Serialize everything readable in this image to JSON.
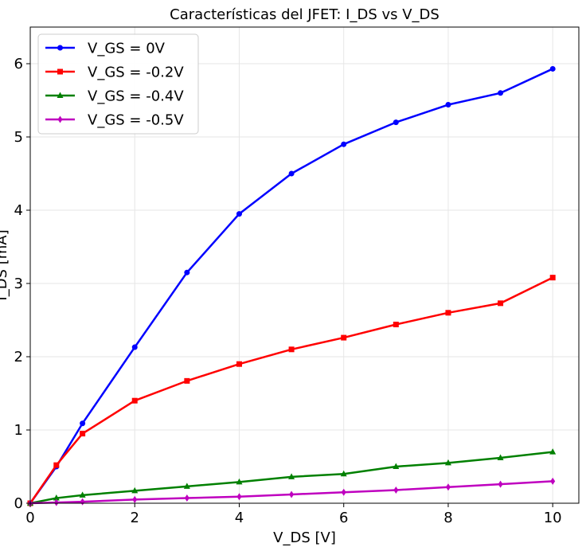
{
  "chart_data": {
    "type": "line",
    "title": "Características del JFET: I_DS vs V_DS",
    "xlabel": "V_DS [V]",
    "ylabel": "I_DS [mA]",
    "xlim": [
      0,
      10.5
    ],
    "ylim": [
      0,
      6.5
    ],
    "xticks": [
      0,
      2,
      4,
      6,
      8,
      10
    ],
    "yticks": [
      0,
      1,
      2,
      3,
      4,
      5,
      6
    ],
    "grid": true,
    "legend_position": "top-left",
    "x": [
      0,
      0.5,
      1,
      2,
      3,
      4,
      5,
      6,
      7,
      8,
      9,
      10
    ],
    "series": [
      {
        "name": "V_GS = 0V",
        "color": "#0000ff",
        "marker": "circle",
        "values": [
          0,
          0.5,
          1.09,
          2.13,
          3.15,
          3.95,
          4.5,
          4.9,
          5.2,
          5.44,
          5.6,
          5.93
        ]
      },
      {
        "name": "V_GS = -0.2V",
        "color": "#ff0000",
        "marker": "square",
        "values": [
          0,
          0.52,
          0.95,
          1.4,
          1.67,
          1.9,
          2.1,
          2.26,
          2.44,
          2.6,
          2.73,
          3.08
        ]
      },
      {
        "name": "V_GS = -0.4V",
        "color": "#008000",
        "marker": "triangle",
        "values": [
          0,
          0.07,
          0.11,
          0.17,
          0.23,
          0.29,
          0.36,
          0.4,
          0.5,
          0.55,
          0.62,
          0.7
        ]
      },
      {
        "name": "V_GS = -0.5V",
        "color": "#bf00bf",
        "marker": "diamond",
        "values": [
          0,
          0.01,
          0.02,
          0.05,
          0.07,
          0.09,
          0.12,
          0.15,
          0.18,
          0.22,
          0.26,
          0.3
        ]
      }
    ]
  }
}
